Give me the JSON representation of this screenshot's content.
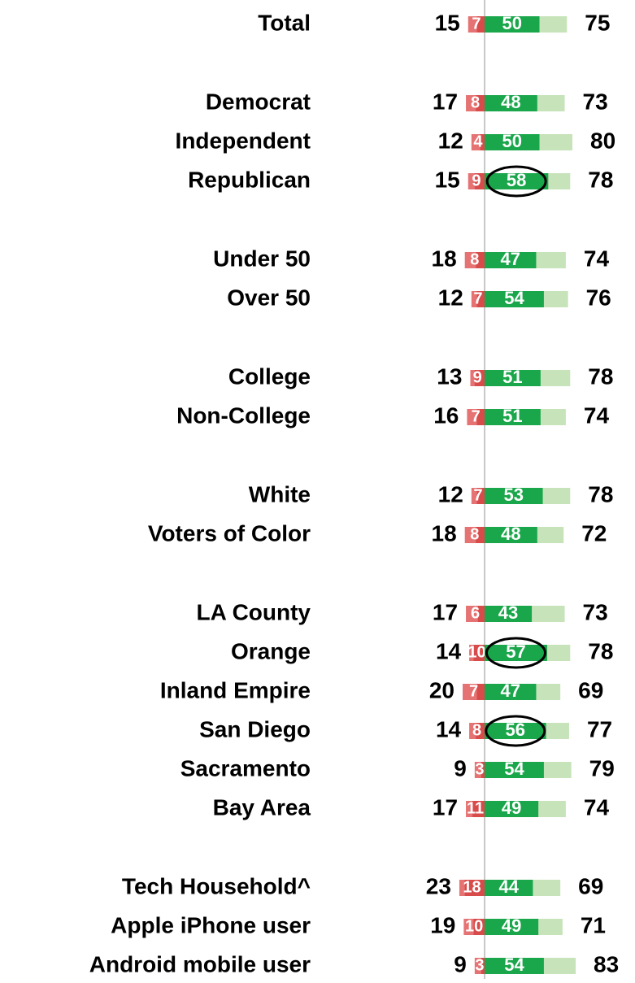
{
  "chart_data": {
    "type": "diverging_bar",
    "categories": [
      "Total",
      "Democrat",
      "Independent",
      "Republican",
      "Under 50",
      "Over 50",
      "College",
      "Non-College",
      "White",
      "Voters of Color",
      "LA County",
      "Orange",
      "Inland Empire",
      "San Diego",
      "Sacramento",
      "Bay Area",
      "Tech Household^",
      "Apple iPhone user",
      "Android mobile user"
    ],
    "series": [
      {
        "color": "#e57373",
        "values": [
          15,
          17,
          12,
          15,
          18,
          12,
          13,
          16,
          12,
          18,
          17,
          14,
          20,
          14,
          9,
          17,
          23,
          19,
          9
        ]
      },
      {
        "color": "#c00000",
        "values": [
          7,
          8,
          4,
          9,
          8,
          7,
          9,
          7,
          7,
          8,
          6,
          10,
          7,
          8,
          3,
          11,
          18,
          10,
          3
        ]
      },
      {
        "color": "#1aa64a",
        "values": [
          50,
          48,
          50,
          58,
          47,
          54,
          51,
          51,
          53,
          48,
          43,
          57,
          47,
          56,
          54,
          49,
          44,
          49,
          54
        ]
      },
      {
        "color": "#c6e3b9",
        "values": [
          75,
          73,
          80,
          78,
          74,
          76,
          78,
          74,
          78,
          72,
          73,
          78,
          69,
          77,
          79,
          74,
          69,
          71,
          83
        ]
      }
    ],
    "highlight": [
      3,
      11,
      13
    ]
  }
}
